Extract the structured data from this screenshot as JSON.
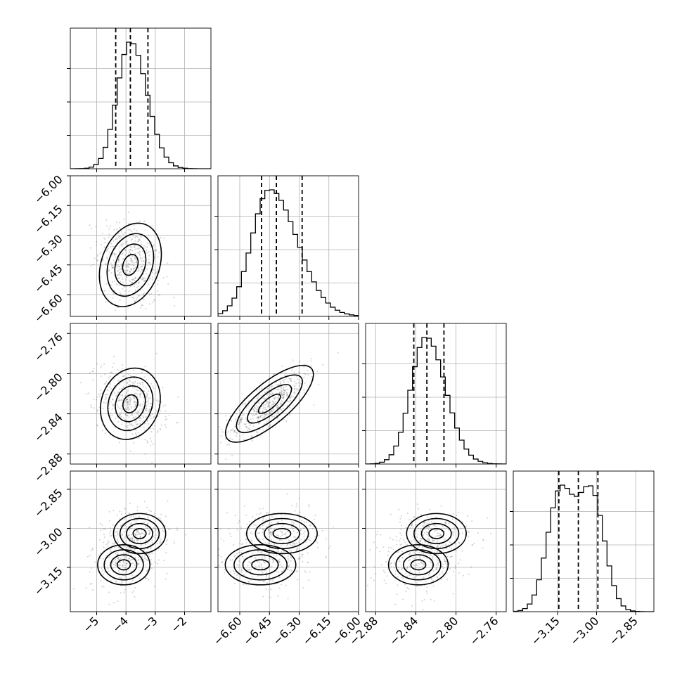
{
  "chart_data": {
    "type": "corner",
    "parameters": [
      {
        "range": [
          -5.9,
          -1.1
        ],
        "ticks": [
          -5,
          -4,
          -3,
          -2
        ],
        "tick_labels": [
          "−5",
          "−4",
          "−3",
          "−2"
        ],
        "center": -3.85,
        "width": 0.45,
        "skew": 0.25,
        "quantiles": [
          -4.35,
          -3.85,
          -3.25
        ]
      },
      {
        "range": [
          -6.71,
          -6.0
        ],
        "ticks": [
          -6.6,
          -6.45,
          -6.3,
          -6.15,
          -6.0
        ],
        "tick_labels": [
          "−6.60",
          "−6.45",
          "−6.30",
          "−6.15",
          "−6.00"
        ],
        "center": -6.45,
        "width": 0.09,
        "skew": 0.55,
        "quantiles": [
          -6.49,
          -6.415,
          -6.285
        ]
      },
      {
        "range": [
          -2.89,
          -2.75
        ],
        "ticks": [
          -2.88,
          -2.84,
          -2.8,
          -2.76
        ],
        "tick_labels": [
          "−2.88",
          "−2.84",
          "−2.80",
          "−2.76"
        ],
        "center": -2.83,
        "width": 0.015,
        "skew": 0.3,
        "quantiles": [
          -2.842,
          -2.829,
          -2.812
        ]
      },
      {
        "range": [
          -3.32,
          -2.78
        ],
        "ticks": [
          -3.15,
          -3.0,
          -2.85
        ],
        "tick_labels": [
          "−3.15",
          "−3.00",
          "−2.85"
        ],
        "center": -3.08,
        "width": 0.05,
        "bimodal": [
          -3.14,
          -3.02
        ],
        "quantiles": [
          -3.145,
          -3.07,
          -2.995
        ]
      }
    ],
    "hist_bins": 30,
    "grid": true,
    "quantile_lines": "dashed",
    "density_levels": 4,
    "scatter_color": "#4a4a4a",
    "line_color": "#000000"
  }
}
